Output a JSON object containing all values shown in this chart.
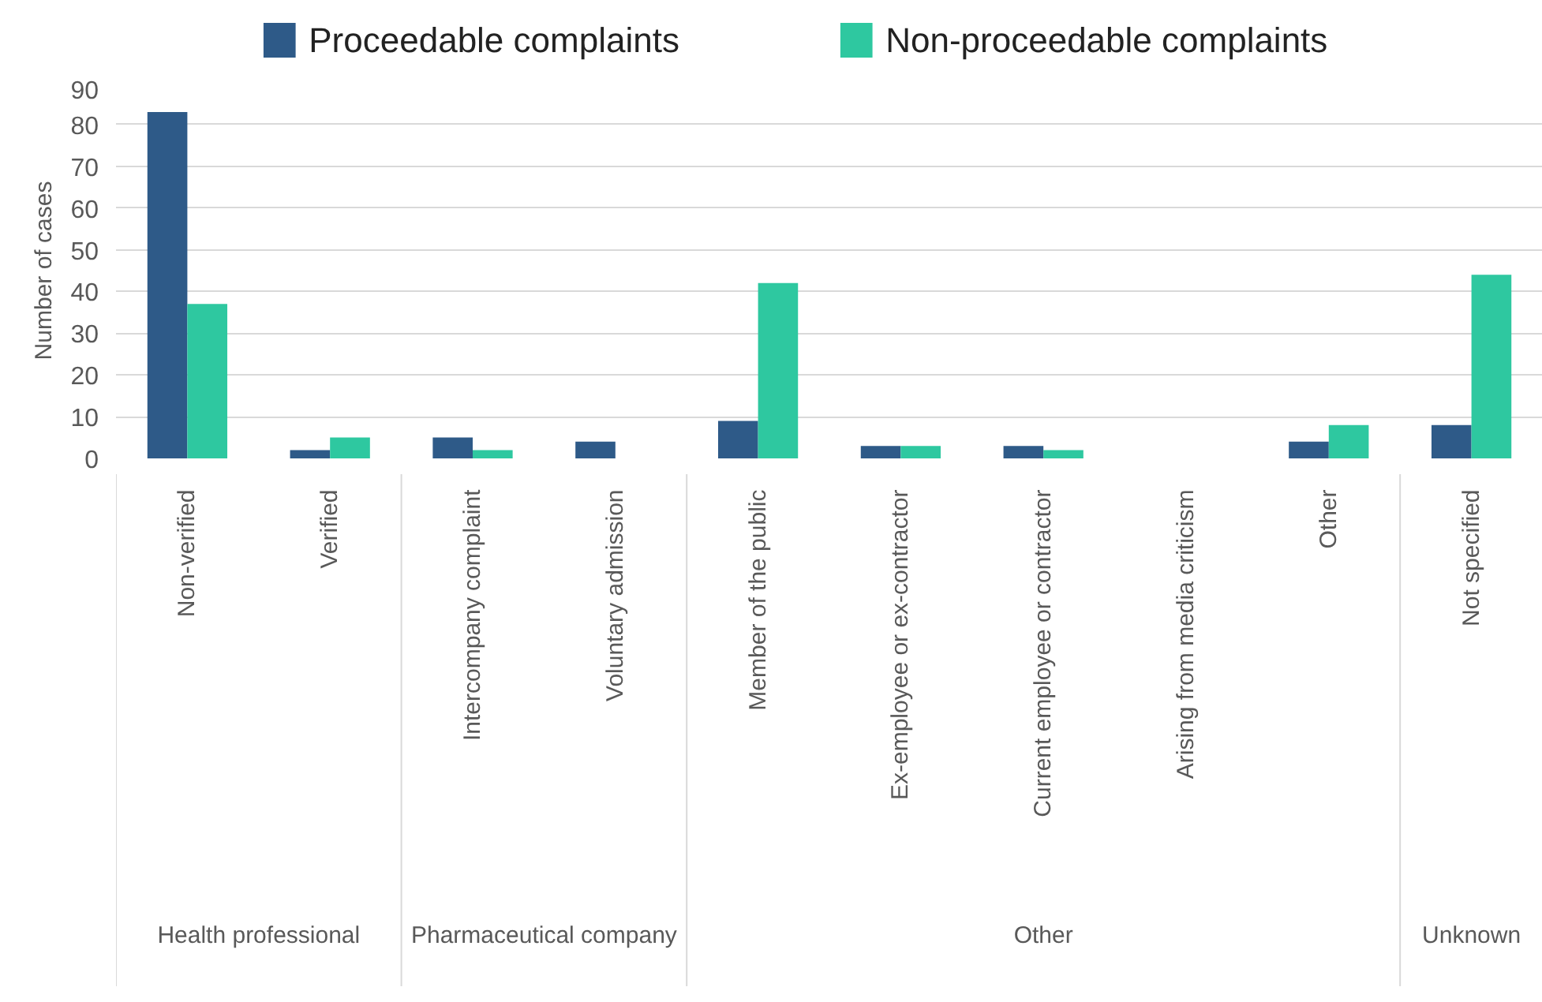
{
  "chart_data": {
    "type": "bar",
    "ylabel": "Number of cases",
    "categories": [
      "Non-verified",
      "Verified",
      "Intercompany complaint",
      "Voluntary admission",
      "Member of the public",
      "Ex-employee or ex-contractor",
      "Current employee or contractor",
      "Arising from media criticism",
      "Other",
      "Not specified"
    ],
    "series": [
      {
        "name": "Proceedable complaints",
        "color": "#2e5a88",
        "values": [
          83,
          2,
          5,
          4,
          9,
          3,
          3,
          0,
          4,
          8
        ]
      },
      {
        "name": "Non-proceedable complaints",
        "color": "#2ec8a0",
        "values": [
          37,
          5,
          2,
          0,
          42,
          3,
          2,
          0,
          8,
          44
        ]
      }
    ],
    "annotations": [
      "Health professional",
      "Pharmaceutical company",
      "Other",
      "Unknown"
    ],
    "ylim": [
      0,
      90
    ],
    "yticks": [
      0,
      10,
      20,
      30,
      40,
      50,
      60,
      70,
      80,
      90
    ],
    "grid": "y",
    "legend": "top"
  }
}
